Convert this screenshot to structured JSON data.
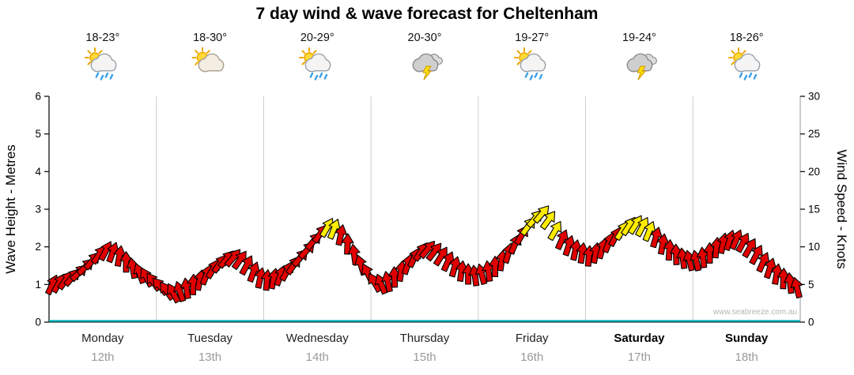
{
  "title": "7 day wind & wave forecast for Cheltenham",
  "watermark": "www.seabreeze.com.au",
  "axes": {
    "left_label": "Wave Height - Metres",
    "right_label": "Wind Speed - Knots",
    "left_ticks": [
      0,
      1,
      2,
      3,
      4,
      5,
      6
    ],
    "right_ticks": [
      0,
      5,
      10,
      15,
      20,
      25,
      30
    ]
  },
  "days": [
    {
      "name": "Monday",
      "date": "12th",
      "temp": "18-23°",
      "icon": "sun-cloud-rain",
      "bold": false
    },
    {
      "name": "Tuesday",
      "date": "13th",
      "temp": "18-30°",
      "icon": "sun-cloud",
      "bold": false
    },
    {
      "name": "Wednesday",
      "date": "14th",
      "temp": "20-29°",
      "icon": "sun-cloud-rain",
      "bold": false
    },
    {
      "name": "Thursday",
      "date": "15th",
      "temp": "20-30°",
      "icon": "cloud-lightning",
      "bold": false
    },
    {
      "name": "Friday",
      "date": "16th",
      "temp": "19-27°",
      "icon": "sun-cloud-rain",
      "bold": false
    },
    {
      "name": "Saturday",
      "date": "17th",
      "temp": "19-24°",
      "icon": "cloud-lightning",
      "bold": true
    },
    {
      "name": "Sunday",
      "date": "18th",
      "temp": "18-26°",
      "icon": "sun-cloud-rain",
      "bold": true
    }
  ],
  "chart_data": {
    "type": "scatter",
    "title": "7 day wind & wave forecast for Cheltenham",
    "x_categories": [
      "Monday 12th",
      "Tuesday 13th",
      "Wednesday 14th",
      "Thursday 15th",
      "Friday 16th",
      "Saturday 17th",
      "Sunday 18th"
    ],
    "points_per_day": 16,
    "left_axis": {
      "label": "Wave Height - Metres",
      "range": [
        0,
        6
      ],
      "ticks": [
        0,
        1,
        2,
        3,
        4,
        5,
        6
      ]
    },
    "right_axis": {
      "label": "Wind Speed - Knots",
      "range": [
        0,
        30
      ],
      "ticks": [
        0,
        5,
        10,
        15,
        20,
        25,
        30
      ]
    },
    "wind_speed_knots": [
      [
        5.0,
        5.2,
        5.6,
        6.0,
        6.6,
        7.4,
        8.2,
        9.0,
        9.5,
        9.3,
        8.8,
        8.0,
        7.2,
        6.5,
        6.0,
        5.4
      ],
      [
        4.8,
        4.2,
        3.9,
        4.1,
        4.5,
        5.0,
        5.6,
        6.3,
        7.1,
        7.8,
        8.4,
        8.6,
        8.3,
        7.6,
        6.7,
        5.9
      ],
      [
        5.6,
        5.8,
        6.2,
        6.8,
        7.6,
        8.6,
        9.6,
        10.8,
        11.8,
        12.6,
        12.4,
        11.6,
        10.4,
        9.0,
        7.6,
        6.5
      ],
      [
        5.3,
        5.1,
        5.4,
        6.0,
        6.8,
        7.7,
        8.6,
        9.4,
        9.7,
        9.4,
        8.8,
        8.1,
        7.4,
        6.8,
        6.4,
        6.2
      ],
      [
        6.4,
        6.8,
        7.4,
        8.2,
        9.2,
        10.4,
        11.6,
        12.8,
        13.8,
        14.4,
        13.6,
        12.2,
        11.0,
        10.2,
        9.6,
        9.2
      ],
      [
        8.8,
        9.2,
        9.8,
        10.6,
        11.4,
        12.2,
        12.8,
        13.0,
        12.7,
        12.1,
        11.3,
        10.4,
        9.6,
        9.0,
        8.5,
        8.2
      ],
      [
        8.2,
        8.6,
        9.2,
        9.9,
        10.5,
        10.9,
        11.0,
        10.6,
        9.9,
        9.0,
        8.0,
        7.2,
        6.4,
        5.8,
        5.2,
        4.6
      ]
    ],
    "wind_direction_deg": [
      [
        25,
        30,
        35,
        40,
        45,
        45,
        40,
        35,
        28,
        20,
        10,
        0,
        -10,
        -20,
        -28,
        -35
      ],
      [
        -40,
        -35,
        -28,
        -18,
        -8,
        2,
        12,
        22,
        30,
        36,
        40,
        40,
        35,
        28,
        20,
        12
      ],
      [
        5,
        12,
        20,
        28,
        34,
        40,
        42,
        40,
        36,
        30,
        22,
        12,
        2,
        -8,
        -18,
        -26
      ],
      [
        -30,
        -22,
        -12,
        -2,
        8,
        18,
        26,
        34,
        40,
        38,
        32,
        24,
        16,
        8,
        0,
        -8
      ],
      [
        -15,
        -8,
        0,
        8,
        16,
        24,
        30,
        36,
        40,
        40,
        36,
        30,
        24,
        18,
        12,
        8
      ],
      [
        5,
        10,
        16,
        22,
        28,
        32,
        34,
        32,
        28,
        22,
        16,
        10,
        4,
        -2,
        -8,
        -14
      ],
      [
        -12,
        -6,
        0,
        6,
        12,
        18,
        24,
        28,
        30,
        28,
        24,
        18,
        10,
        2,
        -6,
        -14
      ]
    ],
    "wave_height_m": [
      0.05,
      0.05,
      0.05,
      0.05,
      0.05,
      0.05,
      0.05
    ],
    "strong_wind_threshold_knots": 12,
    "arrow_colors": {
      "normal": "#e10000",
      "strong": "#ffec00",
      "outline": "#000000"
    },
    "baseline_color": "#00b7bd",
    "grid_color": "#cccccc",
    "legend": "none"
  }
}
